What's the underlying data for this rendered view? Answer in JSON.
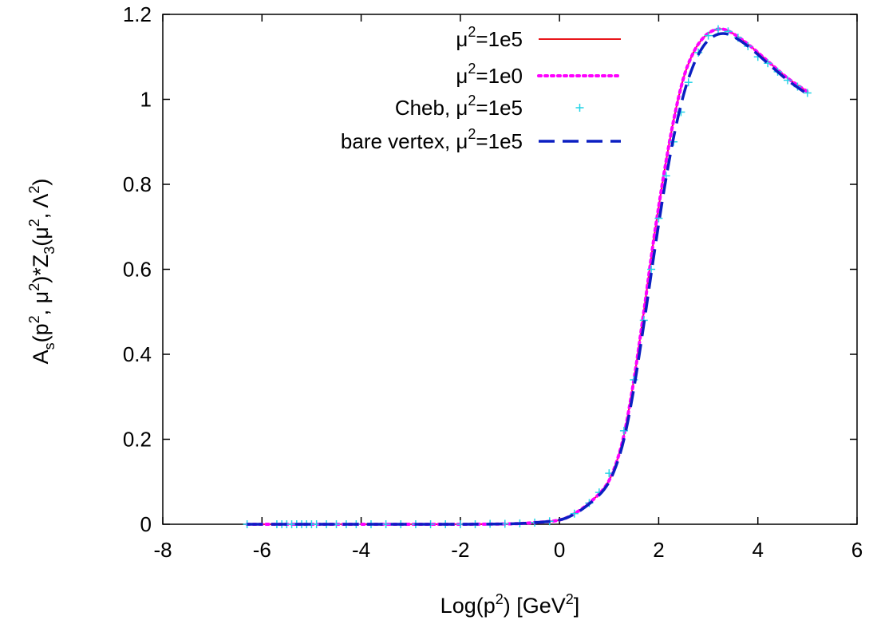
{
  "chart_data": {
    "type": "line",
    "xlabel": "Log(p^2) [GeV^2]",
    "ylabel": "A_s(p^2, μ^2)*Z_3(μ^2, Λ^2)",
    "xlim": [
      -8,
      6
    ],
    "ylim": [
      0,
      1.2
    ],
    "xticks": [
      -8,
      -6,
      -4,
      -2,
      0,
      2,
      4,
      6
    ],
    "yticks": [
      0,
      0.2,
      0.4,
      0.6,
      0.8,
      1,
      1.2
    ],
    "xtick_labels": [
      "-8",
      "-6",
      "-4",
      "-2",
      "0",
      "2",
      "4",
      "6"
    ],
    "ytick_labels": [
      "0",
      "0.2",
      "0.4",
      "0.6",
      "0.8",
      "1",
      "1.2"
    ],
    "grid": false,
    "legend_position": "top-left",
    "series": [
      {
        "name": "μ^2=1e5",
        "color": "#e8171c",
        "style": "solid",
        "x": [
          -6.3,
          -5,
          -4,
          -3,
          -2,
          -1,
          -0.5,
          0,
          0.3,
          0.6,
          0.9,
          1.1,
          1.3,
          1.5,
          1.7,
          1.9,
          2.1,
          2.3,
          2.5,
          2.7,
          2.9,
          3.1,
          3.3,
          3.5,
          3.8,
          4.2,
          4.6,
          5.0
        ],
        "y": [
          0.0,
          0.0,
          0.0,
          0.0,
          0.0,
          0.001,
          0.004,
          0.01,
          0.025,
          0.05,
          0.085,
          0.13,
          0.21,
          0.34,
          0.5,
          0.67,
          0.82,
          0.95,
          1.05,
          1.11,
          1.145,
          1.162,
          1.165,
          1.155,
          1.13,
          1.09,
          1.05,
          1.018
        ]
      },
      {
        "name": "μ^2=1e0",
        "color": "#ff00ff",
        "style": "dotted",
        "x": [
          -6.3,
          -5,
          -4,
          -3,
          -2,
          -1,
          -0.5,
          0,
          0.3,
          0.6,
          0.9,
          1.1,
          1.3,
          1.5,
          1.7,
          1.9,
          2.1,
          2.3,
          2.5,
          2.7,
          2.9,
          3.1,
          3.3,
          3.5,
          3.8,
          4.2,
          4.6,
          5.0
        ],
        "y": [
          0.0,
          0.0,
          0.0,
          0.0,
          0.0,
          0.001,
          0.004,
          0.01,
          0.025,
          0.05,
          0.085,
          0.13,
          0.21,
          0.34,
          0.5,
          0.67,
          0.82,
          0.95,
          1.05,
          1.11,
          1.145,
          1.162,
          1.165,
          1.155,
          1.13,
          1.09,
          1.05,
          1.018
        ]
      },
      {
        "name": "Cheb, μ^2=1e5",
        "color": "#22d3e6",
        "style": "markers",
        "x": [
          -6.3,
          -5.7,
          -5.6,
          -5.5,
          -5.4,
          -5.3,
          -5.2,
          -5.1,
          -5.0,
          -4.9,
          -4.7,
          -4.5,
          -4.3,
          -4.1,
          -3.8,
          -3.5,
          -3.2,
          -2.9,
          -2.6,
          -2.3,
          -2.0,
          -1.7,
          -1.4,
          -1.1,
          -0.8,
          -0.5,
          -0.2,
          0.3,
          0.6,
          0.8,
          1.0,
          1.3,
          1.5,
          1.7,
          1.85,
          2.0,
          2.15,
          2.3,
          2.45,
          2.6,
          2.8,
          3.0,
          3.2,
          3.4,
          3.6,
          3.8,
          4.0,
          4.2,
          4.4,
          4.6,
          4.8,
          5.0
        ],
        "y": [
          0.0,
          0.0,
          0.0,
          0.0,
          0.0,
          0.0,
          0.0,
          0.0,
          0.0,
          0.0,
          0.0,
          0.0,
          0.0,
          0.0,
          0.0,
          0.0,
          0.0,
          0.0,
          0.0,
          0.0,
          0.0,
          0.0,
          0.001,
          0.001,
          0.002,
          0.004,
          0.007,
          0.025,
          0.05,
          0.075,
          0.12,
          0.22,
          0.34,
          0.48,
          0.6,
          0.72,
          0.82,
          0.9,
          0.97,
          1.04,
          1.11,
          1.15,
          1.165,
          1.16,
          1.145,
          1.125,
          1.1,
          1.085,
          1.065,
          1.045,
          1.03,
          1.015
        ]
      },
      {
        "name": "bare vertex, μ^2=1e5",
        "color": "#0b1fc2",
        "style": "dashed",
        "x": [
          -6.3,
          -5,
          -4,
          -3,
          -2,
          -1,
          -0.5,
          0,
          0.3,
          0.6,
          0.9,
          1.1,
          1.3,
          1.5,
          1.7,
          1.9,
          2.1,
          2.3,
          2.5,
          2.7,
          2.9,
          3.1,
          3.3,
          3.5,
          3.8,
          4.2,
          4.6,
          5.0
        ],
        "y": [
          0.0,
          0.0,
          0.0,
          0.0,
          0.0,
          0.001,
          0.004,
          0.01,
          0.024,
          0.048,
          0.082,
          0.125,
          0.2,
          0.32,
          0.47,
          0.63,
          0.78,
          0.91,
          1.01,
          1.08,
          1.125,
          1.148,
          1.155,
          1.148,
          1.125,
          1.085,
          1.045,
          1.012
        ]
      }
    ]
  }
}
